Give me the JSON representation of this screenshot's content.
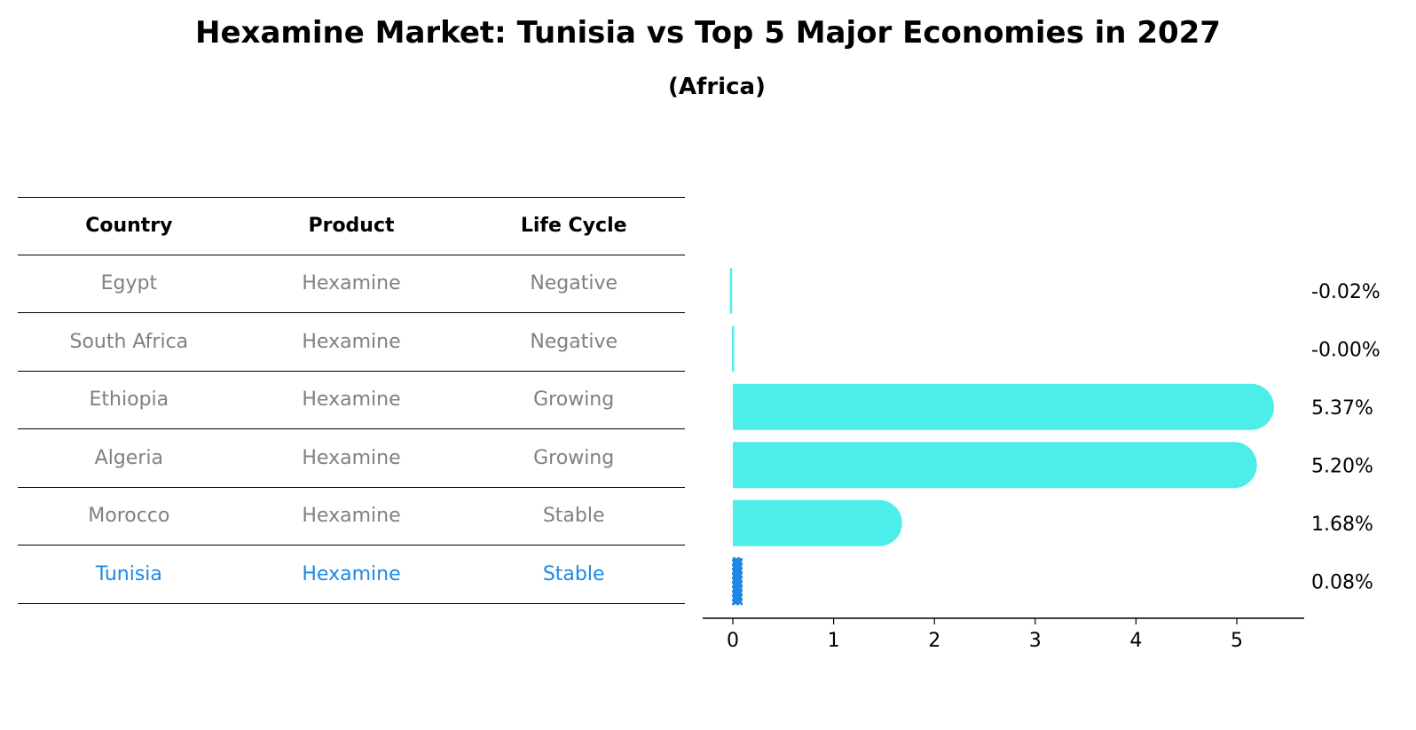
{
  "title": "Hexamine Market: Tunisia vs Top 5 Major Economies in 2027",
  "subtitle": "(Africa)",
  "table": {
    "headers": [
      "Country",
      "Product",
      "Life Cycle"
    ],
    "rows": [
      [
        "Egypt",
        "Hexamine",
        "Negative"
      ],
      [
        "South Africa",
        "Hexamine",
        "Negative"
      ],
      [
        "Ethiopia",
        "Hexamine",
        "Growing"
      ],
      [
        "Algeria",
        "Hexamine",
        "Growing"
      ],
      [
        "Morocco",
        "Hexamine",
        "Stable"
      ],
      [
        "Tunisia",
        "Hexamine",
        "Stable"
      ]
    ],
    "highlight_row": 5
  },
  "colors": {
    "bar": "#4deeea",
    "highlight": "#1e88e5",
    "muted_text": "#808080"
  },
  "chart_data": {
    "type": "bar",
    "orientation": "horizontal",
    "categories": [
      "Egypt",
      "South Africa",
      "Ethiopia",
      "Algeria",
      "Morocco",
      "Tunisia"
    ],
    "values": [
      -0.02,
      -0.0,
      5.37,
      5.2,
      1.68,
      0.08
    ],
    "value_labels": [
      "-0.02%",
      "-0.00%",
      "5.37%",
      "5.20%",
      "1.68%",
      "0.08%"
    ],
    "xticks": [
      "0",
      "1",
      "2",
      "3",
      "4",
      "5"
    ],
    "xlim": [
      -0.3,
      5.65
    ],
    "highlight_index": 5,
    "grid": false
  }
}
